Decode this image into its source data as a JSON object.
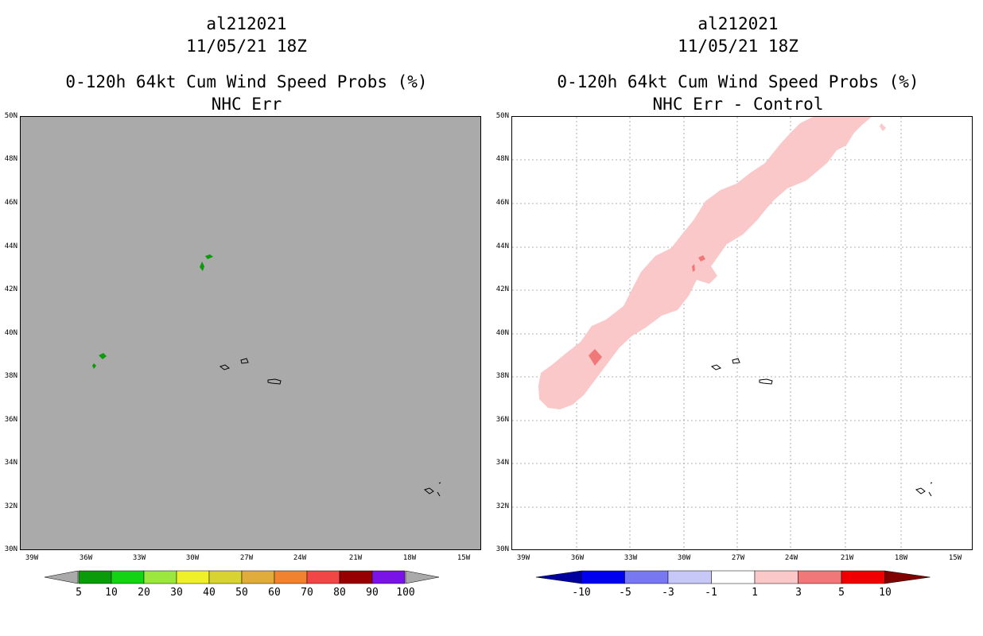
{
  "panels": [
    {
      "storm_id": "al212021",
      "datetime": "11/05/21 18Z",
      "product": "0-120h 64kt Cum Wind Speed Probs (%)",
      "subtitle": "NHC Err",
      "background": "#aaaaaa",
      "colorbar": {
        "labels": [
          "5",
          "10",
          "20",
          "30",
          "40",
          "50",
          "60",
          "70",
          "80",
          "90",
          "100"
        ],
        "colors": [
          "#0a9a0a",
          "#14d214",
          "#9ce640",
          "#f0f028",
          "#d8d232",
          "#e0ac3c",
          "#f08230",
          "#f04646",
          "#960000",
          "#7a14e6"
        ]
      }
    },
    {
      "storm_id": "al212021",
      "datetime": "11/05/21 18Z",
      "product": "0-120h 64kt Cum Wind Speed Probs (%)",
      "subtitle": "NHC Err - Control",
      "background": "#ffffff",
      "colorbar": {
        "labels": [
          "-10",
          "-5",
          "-3",
          "-1",
          "1",
          "3",
          "5",
          "10"
        ],
        "colors": [
          "#0000a0",
          "#0000f0",
          "#7878f0",
          "#c8c8f8",
          "#ffffff",
          "#fac8c8",
          "#f07878",
          "#f00000",
          "#800000"
        ]
      }
    }
  ],
  "axes": {
    "lat_labels": [
      "50N",
      "48N",
      "46N",
      "44N",
      "42N",
      "40N",
      "38N",
      "36N",
      "34N",
      "32N",
      "30N"
    ],
    "lon_labels": [
      "39W",
      "36W",
      "33W",
      "30W",
      "27W",
      "24W",
      "21W",
      "18W",
      "15W"
    ]
  }
}
